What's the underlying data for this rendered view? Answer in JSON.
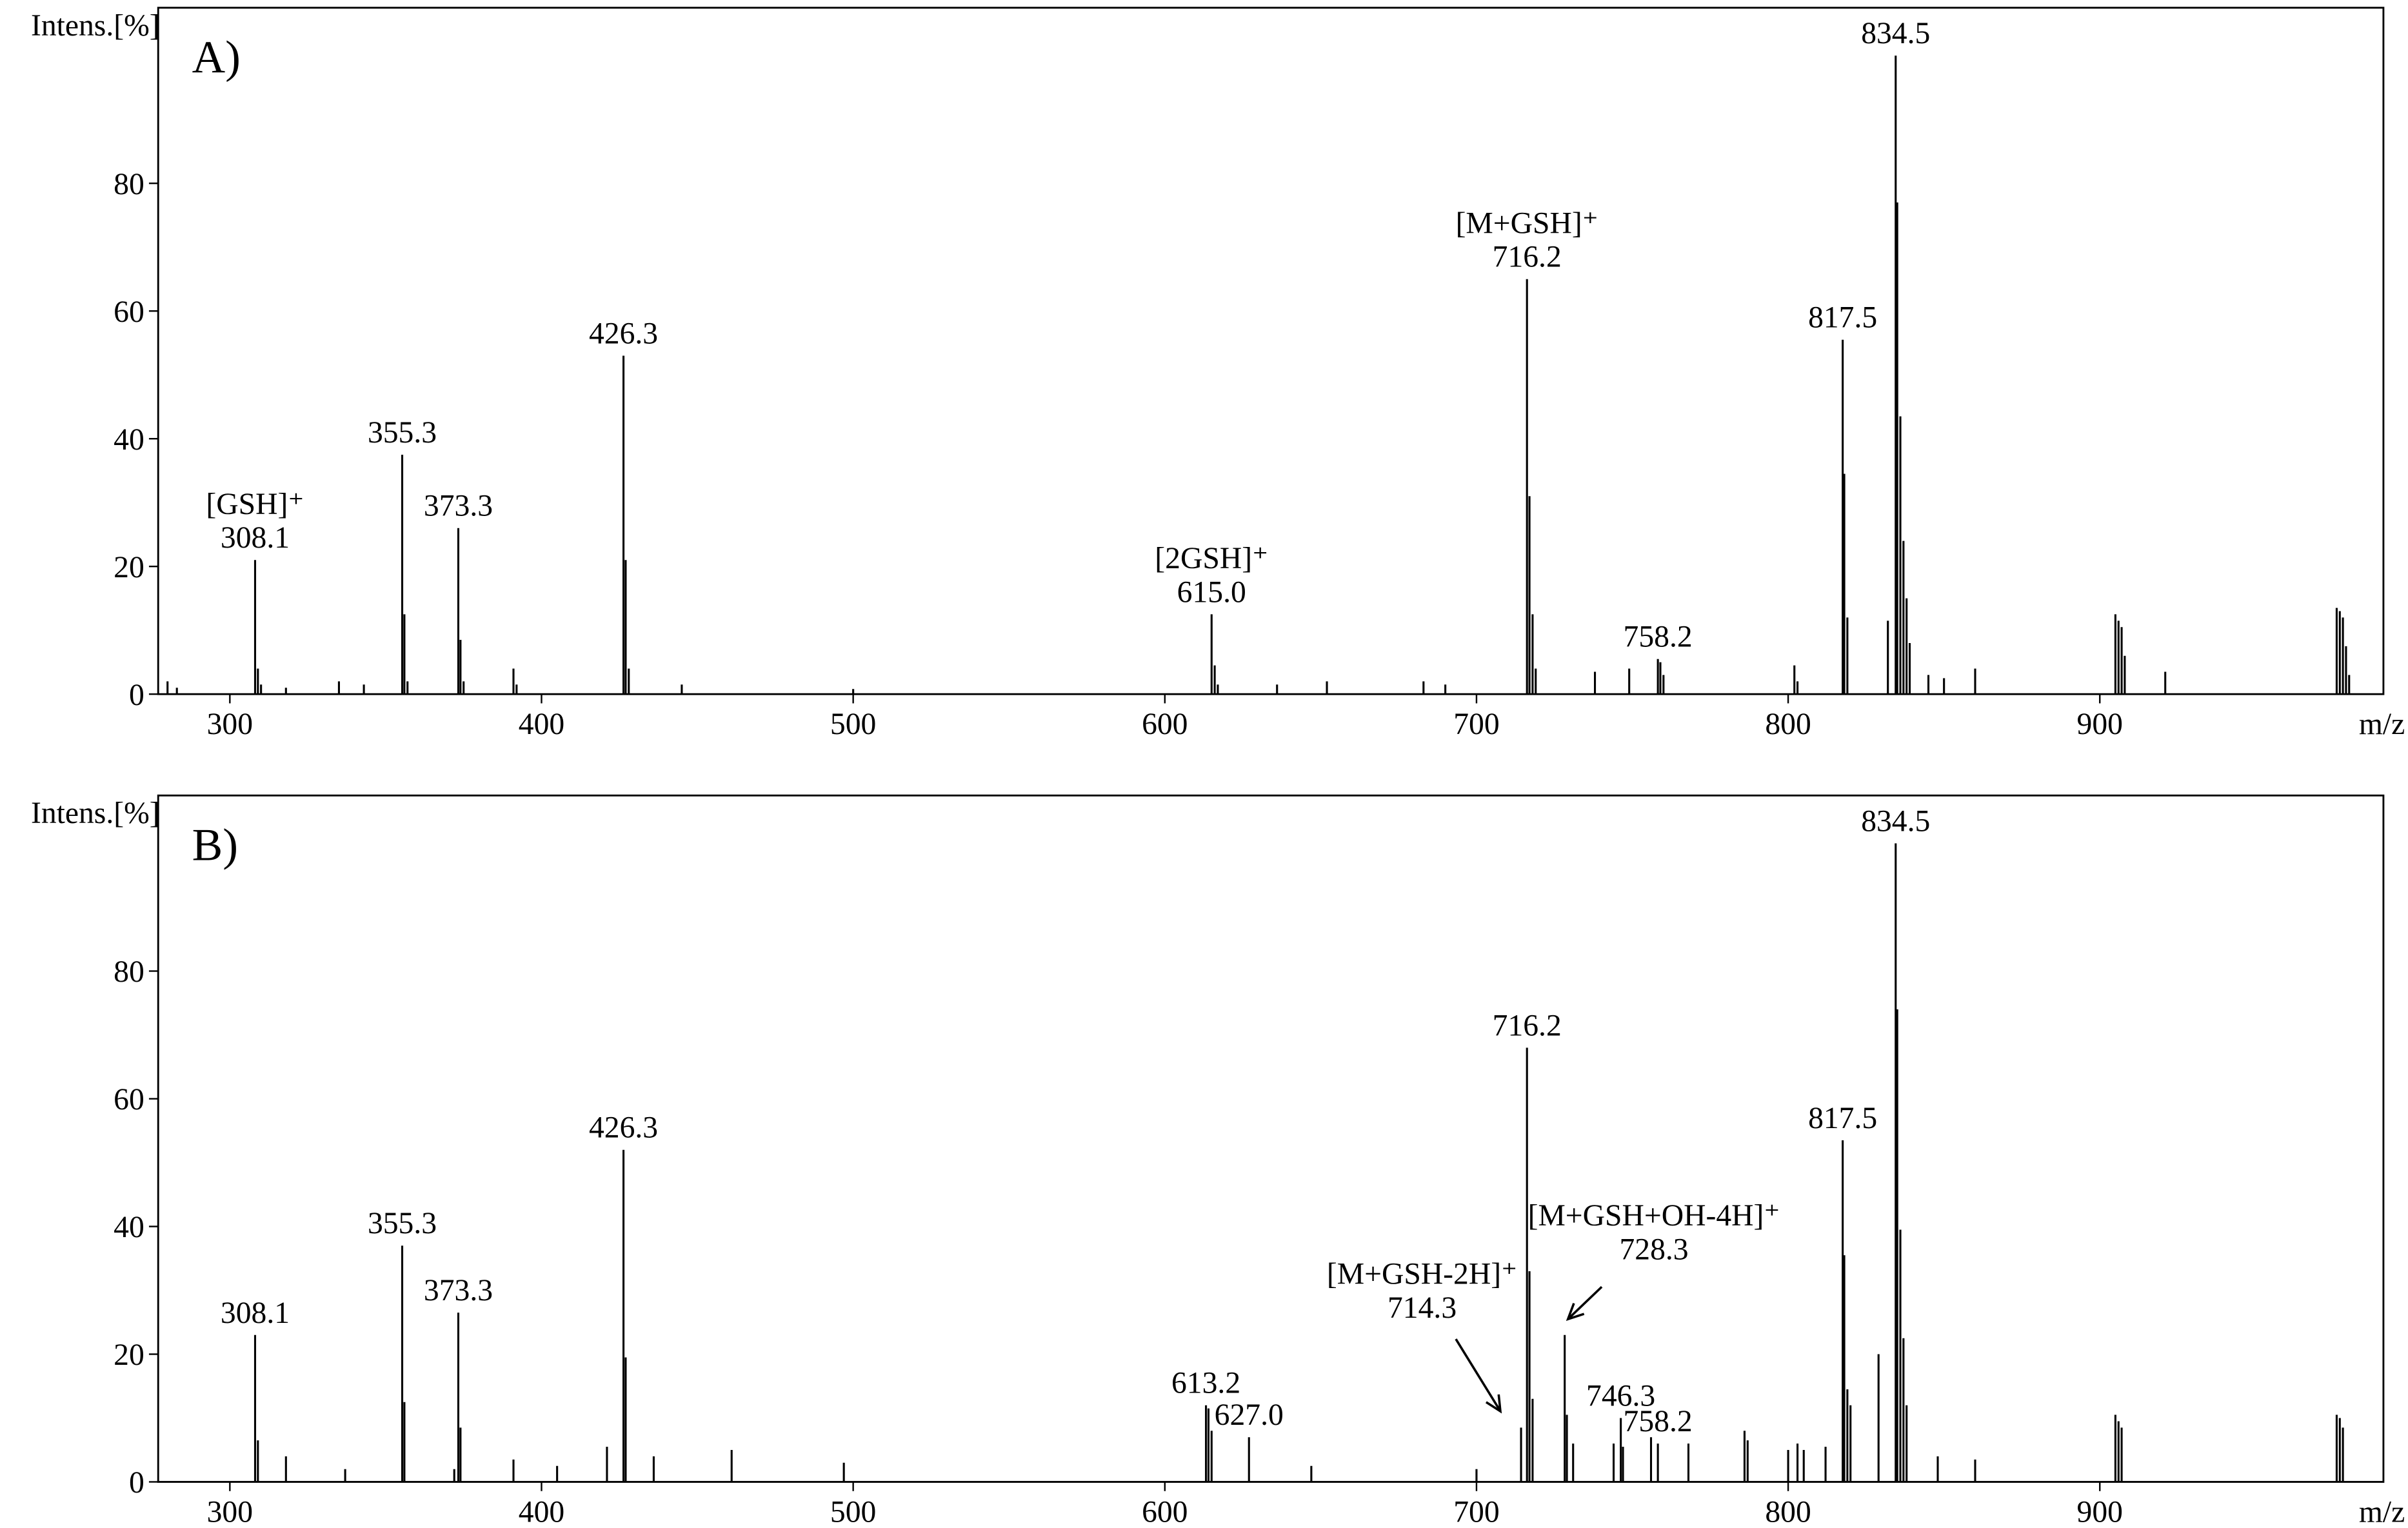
{
  "chart_data": [
    {
      "type": "stem",
      "panel_label": "A)",
      "y_label": "Intens.[%]",
      "x_label": "m/z",
      "color": "#000000",
      "xlim": [
        277,
        991
      ],
      "ylim": [
        0,
        107.5
      ],
      "xticks": [
        300,
        400,
        500,
        600,
        700,
        800,
        900
      ],
      "yticks": [
        0,
        20,
        40,
        60,
        80
      ],
      "x": [
        280,
        283,
        308.1,
        309,
        310,
        318,
        335,
        343,
        355.3,
        356,
        357,
        373.3,
        374,
        375,
        391,
        392,
        426.3,
        427,
        428,
        445,
        500,
        615.0,
        616,
        617,
        636,
        652,
        683,
        690,
        716.2,
        717,
        718,
        719,
        738,
        749,
        758.2,
        759,
        760,
        802,
        803,
        817.5,
        818,
        819,
        832,
        834.5,
        835,
        836,
        837,
        838,
        839,
        845,
        850,
        860,
        905,
        906,
        907,
        908,
        921,
        976,
        977,
        978,
        979,
        980
      ],
      "values": [
        2,
        1,
        21,
        4,
        1.5,
        1,
        2,
        1.5,
        37.5,
        12.5,
        2,
        26,
        8.5,
        2,
        4,
        1.5,
        53,
        21,
        4,
        1.5,
        0.8,
        12.5,
        4.5,
        1.5,
        1.5,
        2,
        2,
        1.5,
        65,
        31,
        12.5,
        4,
        3.5,
        4,
        5.5,
        5,
        3,
        4.5,
        2,
        55.5,
        34.5,
        12,
        11.5,
        100,
        77,
        43.5,
        24,
        15,
        8,
        3,
        2.5,
        4,
        12.5,
        11.5,
        10.5,
        6,
        3.5,
        13.5,
        13,
        12,
        7.5,
        3
      ],
      "annotations": [
        {
          "ion": "[GSH]⁺",
          "text": "308.1",
          "x": 308.1
        },
        {
          "text": "355.3",
          "x": 355.3
        },
        {
          "text": "373.3",
          "x": 373.3
        },
        {
          "text": "426.3",
          "x": 426.3
        },
        {
          "ion": "[2GSH]⁺",
          "text": "615.0",
          "x": 615.0
        },
        {
          "ion": "[M+GSH]⁺",
          "text": "716.2",
          "x": 716.2
        },
        {
          "text": "758.2",
          "x": 758.2
        },
        {
          "text": "817.5",
          "x": 817.5
        },
        {
          "text": "834.5",
          "x": 834.5
        }
      ]
    },
    {
      "type": "stem",
      "panel_label": "B)",
      "y_label": "Intens.[%]",
      "x_label": "m/z",
      "color": "#000000",
      "xlim": [
        277,
        991
      ],
      "ylim": [
        0,
        107.5
      ],
      "xticks": [
        300,
        400,
        500,
        600,
        700,
        800,
        900
      ],
      "yticks": [
        0,
        20,
        40,
        60,
        80
      ],
      "x": [
        308.1,
        309,
        318,
        337,
        355.3,
        356,
        372,
        373.3,
        374,
        391,
        405,
        421,
        426.3,
        427,
        436,
        461,
        497,
        613.2,
        614,
        615,
        627.0,
        647,
        700,
        714.3,
        716.2,
        717,
        718,
        728.3,
        729,
        731,
        744,
        746.3,
        747,
        756,
        758.2,
        768,
        786,
        787,
        800,
        803,
        805,
        812,
        817.5,
        818,
        819,
        820,
        829,
        834.5,
        835,
        836,
        837,
        838,
        848,
        860,
        905,
        906,
        907,
        976,
        977,
        978
      ],
      "values": [
        23,
        6.5,
        4,
        2,
        37,
        12.5,
        2,
        26.5,
        8.5,
        3.5,
        2.5,
        5.5,
        52,
        19.5,
        4,
        5,
        3,
        12,
        11.5,
        8,
        7,
        2.5,
        2,
        8.5,
        68,
        33,
        13,
        23,
        10.5,
        6,
        6,
        10,
        5.5,
        7,
        6,
        6,
        8,
        6.5,
        5,
        6,
        5,
        5.5,
        53.5,
        35.5,
        14.5,
        12,
        20,
        100,
        74,
        39.5,
        22.5,
        12,
        4,
        3.5,
        10.5,
        9.5,
        8.5,
        10.5,
        10,
        8.5
      ],
      "annotations": [
        {
          "text": "308.1",
          "x": 308.1
        },
        {
          "text": "355.3",
          "x": 355.3
        },
        {
          "text": "373.3",
          "x": 373.3
        },
        {
          "text": "426.3",
          "x": 426.3
        },
        {
          "text": "613.2",
          "x": 613.2
        },
        {
          "text": "627.0",
          "x": 627.0
        },
        {
          "ion": "[M+GSH-2H]⁺",
          "text": "714.3",
          "x": 714.3
        },
        {
          "text": "716.2",
          "x": 716.2
        },
        {
          "ion": "[M+GSH+OH-4H]⁺",
          "text": "728.3",
          "x": 728.3
        },
        {
          "text": "746.3",
          "x": 746.3
        },
        {
          "text": "758.2",
          "x": 758.2
        },
        {
          "text": "817.5",
          "x": 817.5
        },
        {
          "text": "834.5",
          "x": 834.5
        }
      ]
    }
  ]
}
